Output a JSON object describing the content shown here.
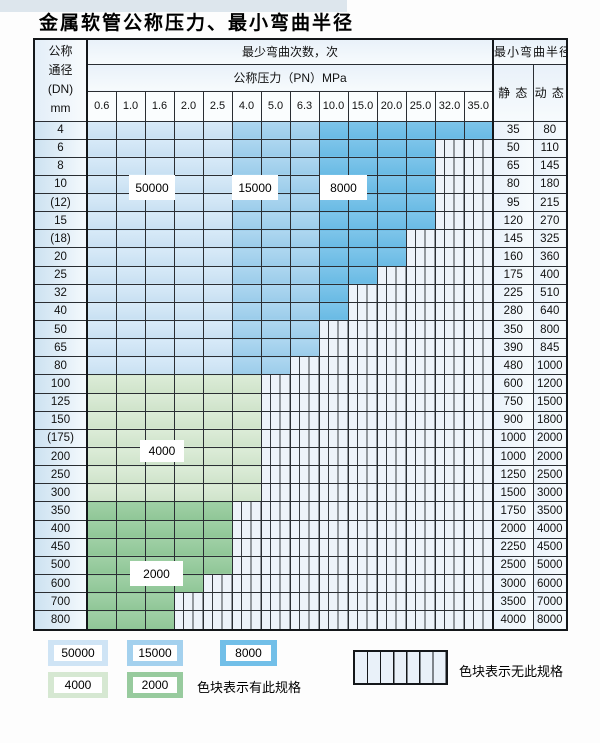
{
  "page": {
    "title": "金属软管公称压力、最小弯曲半径"
  },
  "table": {
    "corner_lines": [
      "公称",
      "通径",
      "(DN)",
      "mm"
    ],
    "bend_header": "最少弯曲次数，次",
    "pressure_header": "公称压力（PN）MPa",
    "radius_header": "最小弯曲半径",
    "static_label": "静 态",
    "dynamic_label": "动 态",
    "pressures": [
      "0.6",
      "1.0",
      "1.6",
      "2.0",
      "2.5",
      "4.0",
      "5.0",
      "6.3",
      "10.0",
      "15.0",
      "20.0",
      "25.0",
      "32.0",
      "35.0"
    ],
    "cycle_bands_blue": [
      {
        "cycles": "50000",
        "from_pn": "0.6",
        "to_pn": "2.5"
      },
      {
        "cycles": "15000",
        "from_pn": "4.0",
        "to_pn": "6.3"
      },
      {
        "cycles": "8000",
        "from_pn": "10.0",
        "to_pn": "35.0"
      }
    ],
    "rows": [
      {
        "dn": "4",
        "max_pn": "35.0",
        "series": "blue",
        "static": "35",
        "dynamic": "80"
      },
      {
        "dn": "6",
        "max_pn": "25.0",
        "series": "blue",
        "static": "50",
        "dynamic": "110"
      },
      {
        "dn": "8",
        "max_pn": "25.0",
        "series": "blue",
        "static": "65",
        "dynamic": "145"
      },
      {
        "dn": "10",
        "max_pn": "25.0",
        "series": "blue",
        "static": "80",
        "dynamic": "180"
      },
      {
        "dn": "(12)",
        "max_pn": "25.0",
        "series": "blue",
        "static": "95",
        "dynamic": "215"
      },
      {
        "dn": "15",
        "max_pn": "25.0",
        "series": "blue",
        "static": "120",
        "dynamic": "270"
      },
      {
        "dn": "(18)",
        "max_pn": "20.0",
        "series": "blue",
        "static": "145",
        "dynamic": "325"
      },
      {
        "dn": "20",
        "max_pn": "20.0",
        "series": "blue",
        "static": "160",
        "dynamic": "360"
      },
      {
        "dn": "25",
        "max_pn": "15.0",
        "series": "blue",
        "static": "175",
        "dynamic": "400"
      },
      {
        "dn": "32",
        "max_pn": "10.0",
        "series": "blue",
        "static": "225",
        "dynamic": "510"
      },
      {
        "dn": "40",
        "max_pn": "10.0",
        "series": "blue",
        "static": "280",
        "dynamic": "640"
      },
      {
        "dn": "50",
        "max_pn": "6.3",
        "series": "blue",
        "static": "350",
        "dynamic": "800"
      },
      {
        "dn": "65",
        "max_pn": "6.3",
        "series": "blue",
        "static": "390",
        "dynamic": "845"
      },
      {
        "dn": "80",
        "max_pn": "5.0",
        "series": "blue",
        "static": "480",
        "dynamic": "1000"
      },
      {
        "dn": "100",
        "max_pn": "4.0",
        "series": "4000",
        "static": "600",
        "dynamic": "1200"
      },
      {
        "dn": "125",
        "max_pn": "4.0",
        "series": "4000",
        "static": "750",
        "dynamic": "1500"
      },
      {
        "dn": "150",
        "max_pn": "4.0",
        "series": "4000",
        "static": "900",
        "dynamic": "1800"
      },
      {
        "dn": "(175)",
        "max_pn": "4.0",
        "series": "4000",
        "static": "1000",
        "dynamic": "2000"
      },
      {
        "dn": "200",
        "max_pn": "4.0",
        "series": "4000",
        "static": "1000",
        "dynamic": "2000"
      },
      {
        "dn": "250",
        "max_pn": "4.0",
        "series": "4000",
        "static": "1250",
        "dynamic": "2500"
      },
      {
        "dn": "300",
        "max_pn": "4.0",
        "series": "4000",
        "static": "1500",
        "dynamic": "3000"
      },
      {
        "dn": "350",
        "max_pn": "2.5",
        "series": "2000",
        "static": "1750",
        "dynamic": "3500"
      },
      {
        "dn": "400",
        "max_pn": "2.5",
        "series": "2000",
        "static": "2000",
        "dynamic": "4000"
      },
      {
        "dn": "450",
        "max_pn": "2.5",
        "series": "2000",
        "static": "2250",
        "dynamic": "4500"
      },
      {
        "dn": "500",
        "max_pn": "2.5",
        "series": "2000",
        "static": "2500",
        "dynamic": "5000"
      },
      {
        "dn": "600",
        "max_pn": "2.0",
        "series": "2000",
        "static": "3000",
        "dynamic": "6000"
      },
      {
        "dn": "700",
        "max_pn": "1.6",
        "series": "2000",
        "static": "3500",
        "dynamic": "7000"
      },
      {
        "dn": "800",
        "max_pn": "1.6",
        "series": "2000",
        "static": "4000",
        "dynamic": "8000"
      }
    ],
    "float_labels": [
      "50000",
      "15000",
      "8000",
      "4000",
      "2000"
    ]
  },
  "legend": {
    "swatches": [
      "50000",
      "15000",
      "8000",
      "4000",
      "2000"
    ],
    "present_label": "色块表示有此规格",
    "absent_label": "色块表示无此规格"
  },
  "colors": {
    "c50000": "#cfe4f5",
    "c15000": "#a4d1ee",
    "c8000": "#72bfe8",
    "c4000": "#d6e8d2",
    "c2000": "#98cb9e",
    "hatch_bg": "#edf3fa",
    "grid_line": "#2a2e33"
  }
}
